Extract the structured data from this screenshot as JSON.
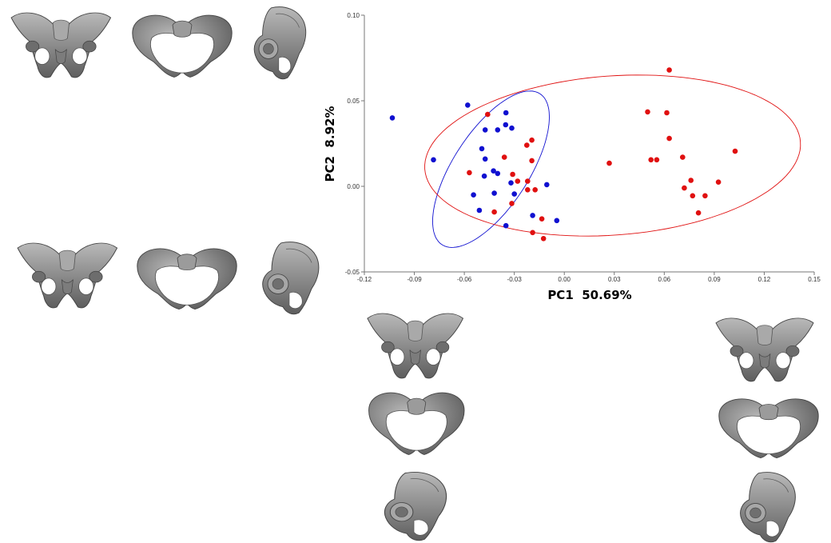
{
  "chart_data": {
    "type": "scatter",
    "title": "",
    "xlabel": "PC1  50.69%",
    "ylabel": "PC2  8.92%",
    "xlim": [
      -0.12,
      0.15
    ],
    "ylim": [
      -0.05,
      0.1
    ],
    "xticks": [
      "-0.12",
      "-0.09",
      "-0.06",
      "-0.03",
      "0.00",
      "0.03",
      "0.06",
      "0.09",
      "0.12",
      "0.15"
    ],
    "yticks": [
      "0.10",
      "0.05",
      "0.00",
      "-0.05"
    ],
    "grid": false,
    "colors": {
      "group_blue": "#1010d0",
      "group_red": "#e01010",
      "axis": "#777777",
      "bone": "#8a8a8a"
    },
    "series": [
      {
        "color": "#1010d0",
        "points": [
          [
            -0.1032,
            0.04
          ],
          [
            -0.0785,
            0.0155
          ],
          [
            -0.058,
            0.0475
          ],
          [
            -0.035,
            0.043
          ],
          [
            -0.0352,
            0.036
          ],
          [
            -0.0315,
            0.034
          ],
          [
            -0.0475,
            0.033
          ],
          [
            -0.04,
            0.033
          ],
          [
            -0.0495,
            0.022
          ],
          [
            -0.0475,
            0.016
          ],
          [
            -0.0425,
            0.009
          ],
          [
            -0.04,
            0.0075
          ],
          [
            -0.048,
            0.006
          ],
          [
            -0.032,
            0.002
          ],
          [
            -0.0105,
            0.001
          ],
          [
            -0.042,
            -0.004
          ],
          [
            -0.03,
            -0.0045
          ],
          [
            -0.0545,
            -0.005
          ],
          [
            -0.051,
            -0.014
          ],
          [
            -0.019,
            -0.017
          ],
          [
            -0.0045,
            -0.02
          ],
          [
            -0.035,
            -0.023
          ]
        ]
      },
      {
        "color": "#e01010",
        "points": [
          [
            -0.046,
            0.042
          ],
          [
            -0.0195,
            0.027
          ],
          [
            -0.0225,
            0.024
          ],
          [
            -0.036,
            0.017
          ],
          [
            -0.0195,
            0.015
          ],
          [
            -0.057,
            0.008
          ],
          [
            -0.031,
            0.007
          ],
          [
            -0.028,
            0.003
          ],
          [
            -0.022,
            0.003
          ],
          [
            -0.022,
            -0.002
          ],
          [
            -0.0175,
            -0.002
          ],
          [
            -0.0315,
            -0.01
          ],
          [
            -0.042,
            -0.015
          ],
          [
            -0.0135,
            -0.019
          ],
          [
            -0.019,
            -0.027
          ],
          [
            -0.0125,
            -0.0305
          ],
          [
            0.027,
            0.0135
          ],
          [
            0.052,
            0.0155
          ],
          [
            0.0555,
            0.0155
          ],
          [
            0.05,
            0.0435
          ],
          [
            0.0615,
            0.043
          ],
          [
            0.063,
            0.068
          ],
          [
            0.063,
            0.028
          ],
          [
            0.071,
            0.017
          ],
          [
            0.1025,
            0.0205
          ],
          [
            0.076,
            0.0035
          ],
          [
            0.0925,
            0.0025
          ],
          [
            0.072,
            -0.001
          ],
          [
            0.077,
            -0.0055
          ],
          [
            0.0845,
            -0.0055
          ],
          [
            0.0805,
            -0.0155
          ]
        ]
      }
    ],
    "ellipses": [
      {
        "color": "#1010d0",
        "center": [
          -0.044,
          0.01
        ],
        "semi_major": 0.053,
        "semi_minor": 0.0225,
        "rotation_deg": 56
      },
      {
        "color": "#e01010",
        "center": [
          0.029,
          0.018
        ],
        "semi_major": 0.113,
        "semi_minor": 0.0465,
        "rotation_deg": 4
      }
    ]
  },
  "figures": {
    "top_left": [
      "pelvis-anterior-view",
      "pelvis-superior-view",
      "pelvis-lateral-view"
    ],
    "middle_left": [
      "pelvis-anterior-view",
      "pelvis-superior-view",
      "pelvis-lateral-view"
    ],
    "bottom_negative_pc1": [
      "pelvis-anterior-view",
      "pelvis-superior-view",
      "pelvis-lateral-view"
    ],
    "bottom_positive_pc1": [
      "pelvis-anterior-view",
      "pelvis-superior-view",
      "pelvis-lateral-view"
    ]
  }
}
